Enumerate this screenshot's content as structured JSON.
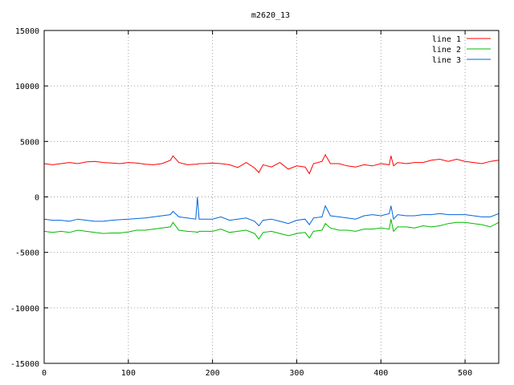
{
  "chart_data": {
    "type": "line",
    "title": "m2620_13",
    "xlabel": "",
    "ylabel": "",
    "xlim": [
      0,
      540
    ],
    "ylim": [
      -15000,
      15000
    ],
    "x_ticks": [
      0,
      100,
      200,
      300,
      400,
      500
    ],
    "y_ticks": [
      -15000,
      -10000,
      -5000,
      0,
      5000,
      10000,
      15000
    ],
    "grid": true,
    "legend_position": "top-right",
    "x": [
      0,
      10,
      20,
      30,
      40,
      50,
      60,
      70,
      80,
      90,
      100,
      110,
      120,
      130,
      140,
      150,
      153,
      160,
      170,
      180,
      182,
      184,
      190,
      200,
      210,
      220,
      230,
      240,
      250,
      255,
      260,
      270,
      280,
      290,
      300,
      310,
      315,
      320,
      330,
      334,
      340,
      350,
      360,
      370,
      380,
      390,
      400,
      410,
      412,
      415,
      420,
      430,
      440,
      450,
      460,
      470,
      480,
      490,
      500,
      510,
      520,
      530,
      540
    ],
    "series": [
      {
        "name": "line 1",
        "color": "#ff0000",
        "values": [
          3000,
          2900,
          3000,
          3100,
          3000,
          3150,
          3200,
          3100,
          3050,
          3000,
          3100,
          3050,
          2950,
          2900,
          3000,
          3300,
          3700,
          3100,
          2900,
          2950,
          2950,
          3000,
          3000,
          3050,
          3000,
          2900,
          2650,
          3100,
          2600,
          2200,
          2900,
          2700,
          3100,
          2500,
          2800,
          2700,
          2100,
          3000,
          3200,
          3800,
          3000,
          3000,
          2800,
          2700,
          2900,
          2800,
          3000,
          2900,
          3700,
          2800,
          3100,
          3000,
          3100,
          3100,
          3300,
          3400,
          3200,
          3400,
          3200,
          3100,
          3000,
          3200,
          3300
        ]
      },
      {
        "name": "line 2",
        "color": "#00bb00",
        "values": [
          -3100,
          -3200,
          -3100,
          -3200,
          -3000,
          -3100,
          -3200,
          -3300,
          -3250,
          -3250,
          -3150,
          -3000,
          -3000,
          -2900,
          -2800,
          -2700,
          -2300,
          -3000,
          -3100,
          -3150,
          -3200,
          -3100,
          -3100,
          -3100,
          -2900,
          -3200,
          -3100,
          -3000,
          -3300,
          -3800,
          -3200,
          -3100,
          -3300,
          -3500,
          -3300,
          -3200,
          -3700,
          -3100,
          -3000,
          -2400,
          -2800,
          -3000,
          -3000,
          -3100,
          -2900,
          -2900,
          -2800,
          -2900,
          -2000,
          -3100,
          -2700,
          -2700,
          -2800,
          -2600,
          -2700,
          -2600,
          -2400,
          -2300,
          -2300,
          -2400,
          -2500,
          -2700,
          -2300
        ]
      },
      {
        "name": "line 3",
        "color": "#0066dd",
        "values": [
          -2000,
          -2100,
          -2100,
          -2200,
          -2000,
          -2100,
          -2200,
          -2200,
          -2100,
          -2050,
          -2000,
          -1950,
          -1900,
          -1800,
          -1700,
          -1600,
          -1300,
          -1800,
          -1900,
          -2000,
          0,
          -2000,
          -2000,
          -2000,
          -1800,
          -2100,
          -2000,
          -1900,
          -2200,
          -2600,
          -2100,
          -2000,
          -2200,
          -2400,
          -2100,
          -2000,
          -2500,
          -1900,
          -1800,
          -800,
          -1700,
          -1800,
          -1900,
          -2000,
          -1700,
          -1600,
          -1700,
          -1500,
          -800,
          -2000,
          -1600,
          -1700,
          -1700,
          -1600,
          -1600,
          -1500,
          -1600,
          -1600,
          -1600,
          -1700,
          -1800,
          -1800,
          -1500
        ]
      }
    ]
  }
}
